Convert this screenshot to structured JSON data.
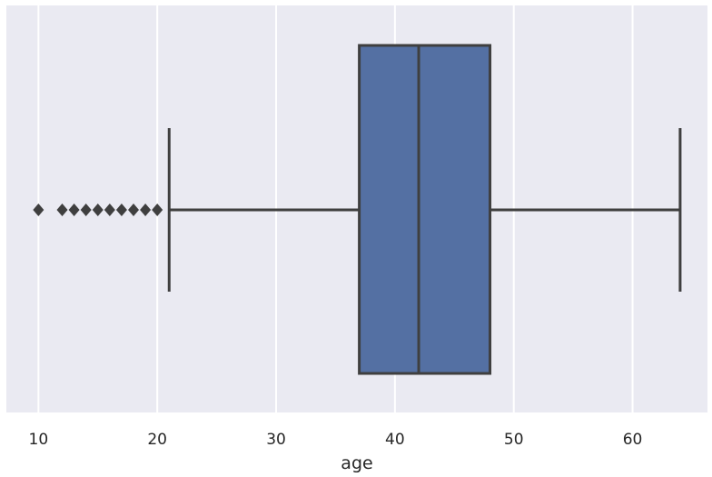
{
  "chart_data": {
    "type": "box",
    "orientation": "horizontal",
    "xlabel": "age",
    "xlim": [
      7.3,
      66.3
    ],
    "ticks": [
      10,
      20,
      30,
      40,
      50,
      60
    ],
    "tick_labels": [
      "10",
      "20",
      "30",
      "40",
      "50",
      "60"
    ],
    "grid": true,
    "box": {
      "whisker_low": 21,
      "q1": 37,
      "median": 42,
      "q3": 48,
      "whisker_high": 64
    },
    "outliers": [
      10,
      12,
      13,
      14,
      15,
      16,
      17,
      18,
      19,
      20
    ],
    "colors": {
      "background": "#eaeaf2",
      "grid": "#ffffff",
      "box_fill": "#5470a3",
      "line": "#3f3f3f"
    }
  }
}
